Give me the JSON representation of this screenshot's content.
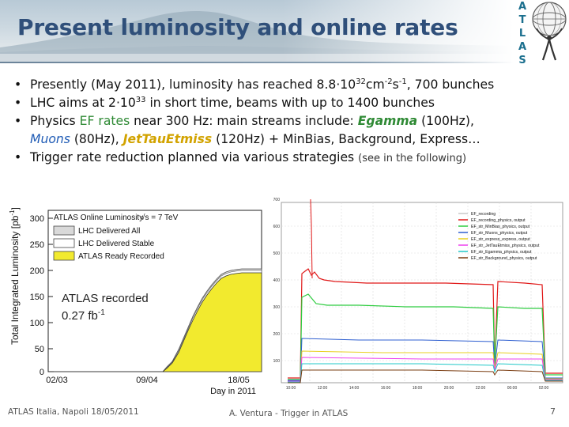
{
  "slide": {
    "title": "Present luminosity and online rates",
    "atlas_letters": [
      "A",
      "T",
      "L",
      "A",
      "S"
    ]
  },
  "bullets": {
    "b1_pre": "Presently (May 2011), luminosity has reached 8.8·10",
    "b1_exp1": "32",
    "b1_mid": "cm",
    "b1_exp2": "-2",
    "b1_s": "s",
    "b1_exp3": "-1",
    "b1_post": ", 700 bunches",
    "b2_pre": "LHC aims at 2·10",
    "b2_exp": "33",
    "b2_post": " in short time, beams with up to 1400 bunches",
    "b3_a": "Physics ",
    "b3_ef": "EF rates",
    "b3_b": " near 300 Hz: main streams include: ",
    "b3_egamma": "Egamma",
    "b3_c": " (100Hz),",
    "b3_muons": "Muons",
    "b3_d": " (80Hz), ",
    "b3_jet": "JetTauEtmiss",
    "b3_e": " (120Hz) + MinBias, Background, Express…",
    "b4_main": "Trigger rate reduction planned via various strategies ",
    "b4_note": "(see in the following)",
    "bullet_char": "•"
  },
  "lumi_plot": {
    "yaxis_label": "Total Integrated Luminosity [pb",
    "yaxis_exp": "-1",
    "yaxis_close": "]",
    "y_ticks": [
      "300",
      "250",
      "200",
      "150",
      "100",
      "50",
      "0"
    ],
    "x_ticks": [
      "02/03",
      "09/04",
      "18/05"
    ],
    "xaxis_label": "Day in 2011",
    "legend_title": "ATLAS Online Luminosity",
    "legend_energy": "√s = 7 TeV",
    "legend_items": [
      {
        "label": "LHC Delivered All",
        "color": "#d9d9d9"
      },
      {
        "label": "LHC Delivered Stable",
        "color": "#ffffff"
      },
      {
        "label": "ATLAS Ready Recorded",
        "color": "#f2ea2e"
      }
    ],
    "overlay_line1": "ATLAS recorded",
    "overlay_line2": "0.27 fb",
    "overlay_exp": "-1"
  },
  "rate_plot": {
    "y_ticks": [
      "700",
      "600",
      "500",
      "400",
      "300",
      "200",
      "100"
    ],
    "x_ticks": [
      "10:00",
      "12:00",
      "14:00",
      "16:00",
      "18:00",
      "20:00",
      "22:00",
      "00:00",
      "02:00"
    ],
    "legend_items": [
      {
        "label": "EF_recording",
        "color": "#c8c8c8"
      },
      {
        "label": "EF_recording_physics, output",
        "color": "#e01818"
      },
      {
        "label": "EF_str_MinBias_physics, output",
        "color": "#2ecc40"
      },
      {
        "label": "EF_str_Muons_physics, output",
        "color": "#2f5fd0"
      },
      {
        "label": "EF_str_express_express, output",
        "color": "#e8d020"
      },
      {
        "label": "EF_str_JetTauEtmiss_physics, output",
        "color": "#ee40ee"
      },
      {
        "label": "EF_str_Egamma_physics, output",
        "color": "#20c8c8"
      },
      {
        "label": "EF_str_Background_physics, output",
        "color": "#7a3c10"
      }
    ]
  },
  "footer": {
    "left": "ATLAS Italia, Napoli 18/05/2011",
    "center": "A. Ventura - Trigger in ATLAS",
    "page": "7"
  }
}
